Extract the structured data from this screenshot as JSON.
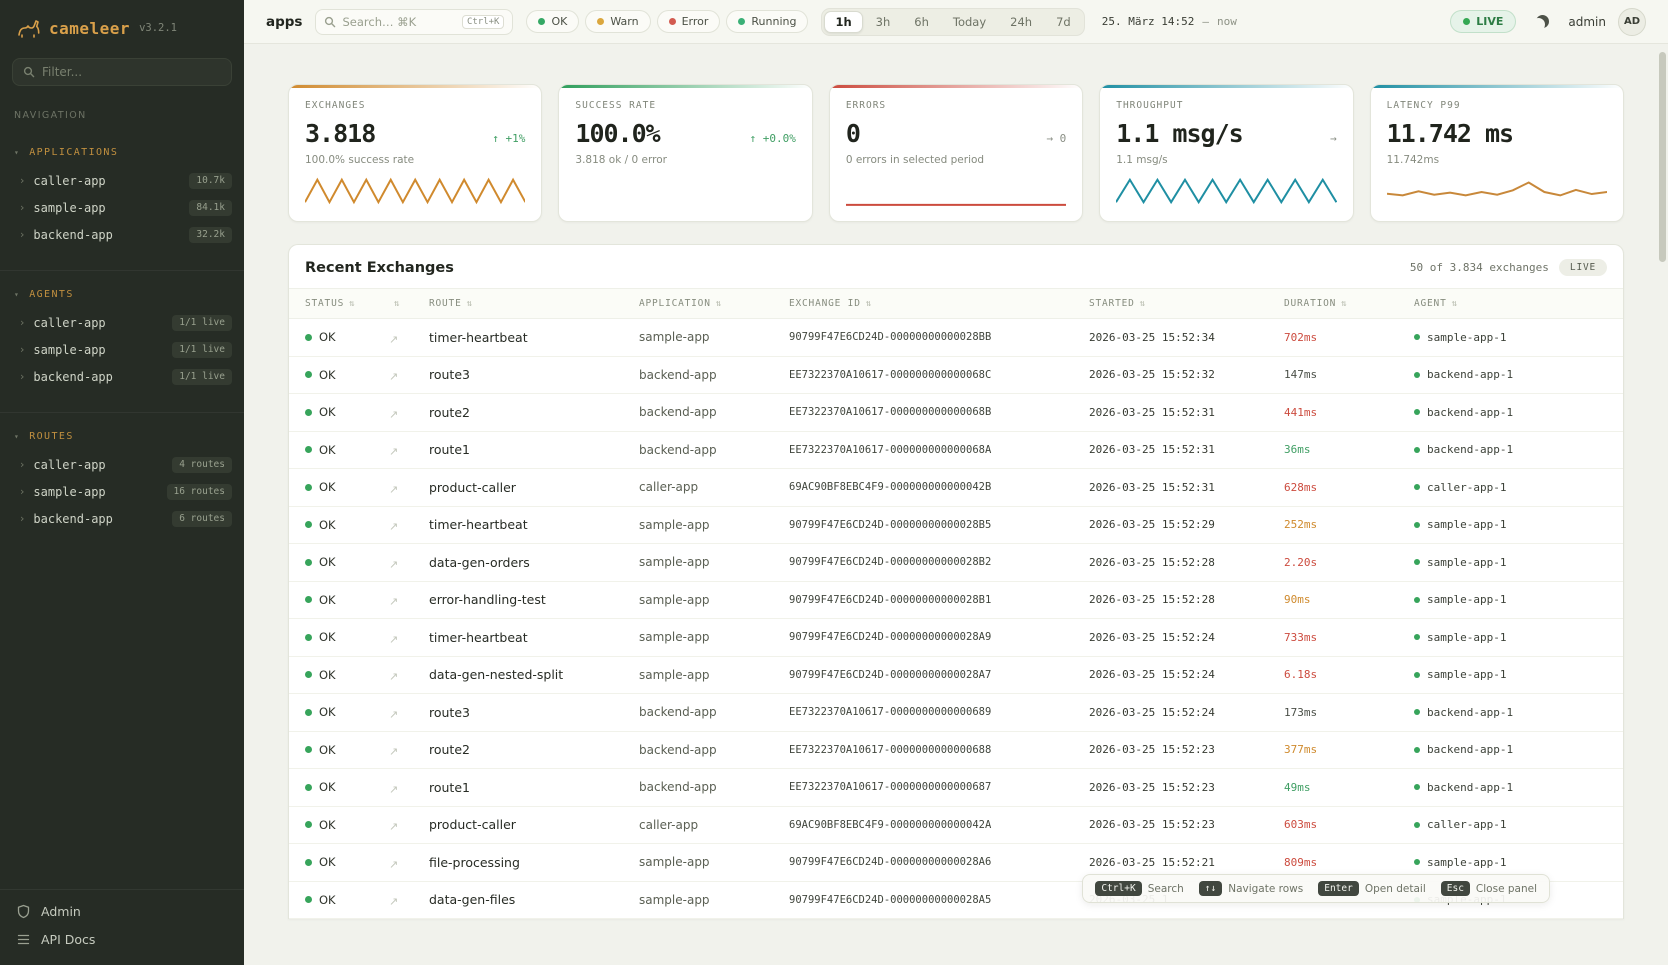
{
  "app": {
    "logo": "cameleer",
    "version": "v3.2.1",
    "accent": "#d9a04a"
  },
  "sidebar": {
    "filter_placeholder": "Filter...",
    "nav_label": "NAVIGATION",
    "sections": [
      {
        "title": "APPLICATIONS",
        "items": [
          {
            "label": "caller-app",
            "badge": "10.7k"
          },
          {
            "label": "sample-app",
            "badge": "84.1k"
          },
          {
            "label": "backend-app",
            "badge": "32.2k"
          }
        ]
      },
      {
        "title": "AGENTS",
        "items": [
          {
            "label": "caller-app",
            "badge": "1/1 live"
          },
          {
            "label": "sample-app",
            "badge": "1/1 live"
          },
          {
            "label": "backend-app",
            "badge": "1/1 live"
          }
        ]
      },
      {
        "title": "ROUTES",
        "items": [
          {
            "label": "caller-app",
            "badge": "4 routes"
          },
          {
            "label": "sample-app",
            "badge": "16 routes"
          },
          {
            "label": "backend-app",
            "badge": "6 routes"
          }
        ]
      }
    ],
    "footer": [
      {
        "label": "Admin"
      },
      {
        "label": "API Docs"
      }
    ]
  },
  "topbar": {
    "page": "apps",
    "search_placeholder": "Search… ⌘K",
    "search_kbd": "Ctrl+K",
    "filters": [
      {
        "label": "OK",
        "color": "#35a865"
      },
      {
        "label": "Warn",
        "color": "#dba73e"
      },
      {
        "label": "Error",
        "color": "#d25b50"
      },
      {
        "label": "Running",
        "color": "#3bb077"
      }
    ],
    "ranges": [
      "1h",
      "3h",
      "6h",
      "Today",
      "24h",
      "7d"
    ],
    "active_range": "1h",
    "date_start": "25. März 14:52",
    "date_sep": "—",
    "date_end": "now",
    "live_label": "LIVE",
    "live_color": "#34a853",
    "user": "admin",
    "avatar": "AD"
  },
  "stats": [
    {
      "title": "EXCHANGES",
      "value": "3.818",
      "delta": "↑ +1%",
      "delta_color": "#3f9e63",
      "sub": "100.0% success rate",
      "color": "#d08a2e",
      "spark_color": "#d08a2e",
      "spark_points": [
        80,
        14,
        80,
        14,
        80,
        14,
        80,
        14,
        80,
        14,
        80,
        14,
        80,
        14,
        80,
        14,
        80,
        14,
        80
      ]
    },
    {
      "title": "SUCCESS RATE",
      "value": "100.0%",
      "delta": "↑ +0.0%",
      "delta_color": "#3f9e63",
      "sub": "3.818 ok / 0 error",
      "color": "#2e9e5b",
      "spark_color": "#2e9e5b",
      "spark_points": []
    },
    {
      "title": "ERRORS",
      "value": "0",
      "delta": "→ 0",
      "delta_color": "#8a8f85",
      "sub": "0 errors in selected period",
      "color": "#cc4b3e",
      "spark_color": "#cc4b3e",
      "spark_points": [
        88,
        88
      ]
    },
    {
      "title": "THROUGHPUT",
      "value": "1.1 msg/s",
      "delta": "→",
      "delta_color": "#8a8f85",
      "sub": "1.1 msg/s",
      "color": "#1f8fa3",
      "spark_color": "#1f8fa3",
      "spark_points": [
        80,
        14,
        80,
        14,
        80,
        14,
        80,
        14,
        80,
        14,
        80,
        14,
        80,
        14,
        80,
        14,
        80
      ]
    },
    {
      "title": "LATENCY P99",
      "value": "11.742 ms",
      "delta": "",
      "delta_color": "#8a8f85",
      "sub": "11.742ms",
      "color": "#1f8fa3",
      "spark_color": "#c8883a",
      "spark_points": [
        55,
        60,
        48,
        58,
        52,
        60,
        50,
        58,
        45,
        22,
        50,
        60,
        44,
        56,
        50
      ]
    }
  ],
  "table": {
    "title": "Recent Exchanges",
    "summary": "50 of 3.834 exchanges",
    "live_label": "LIVE",
    "columns": [
      "STATUS",
      "",
      "ROUTE",
      "APPLICATION",
      "EXCHANGE ID",
      "STARTED",
      "DURATION",
      "AGENT"
    ],
    "rows": [
      {
        "status": "OK",
        "route": "timer-heartbeat",
        "app": "sample-app",
        "exchange_id": "90799F47E6CD24D-00000000000028BB",
        "started": "2026-03-25 15:52:34",
        "duration": "702ms",
        "duration_level": "slow",
        "agent": "sample-app-1"
      },
      {
        "status": "OK",
        "route": "route3",
        "app": "backend-app",
        "exchange_id": "EE7322370A10617-000000000000068C",
        "started": "2026-03-25 15:52:32",
        "duration": "147ms",
        "duration_level": "normal",
        "agent": "backend-app-1"
      },
      {
        "status": "OK",
        "route": "route2",
        "app": "backend-app",
        "exchange_id": "EE7322370A10617-000000000000068B",
        "started": "2026-03-25 15:52:31",
        "duration": "441ms",
        "duration_level": "slow",
        "agent": "backend-app-1"
      },
      {
        "status": "OK",
        "route": "route1",
        "app": "backend-app",
        "exchange_id": "EE7322370A10617-000000000000068A",
        "started": "2026-03-25 15:52:31",
        "duration": "36ms",
        "duration_level": "fast",
        "agent": "backend-app-1"
      },
      {
        "status": "OK",
        "route": "product-caller",
        "app": "caller-app",
        "exchange_id": "69AC90BF8EBC4F9-000000000000042B",
        "started": "2026-03-25 15:52:31",
        "duration": "628ms",
        "duration_level": "slow",
        "agent": "caller-app-1"
      },
      {
        "status": "OK",
        "route": "timer-heartbeat",
        "app": "sample-app",
        "exchange_id": "90799F47E6CD24D-00000000000028B5",
        "started": "2026-03-25 15:52:29",
        "duration": "252ms",
        "duration_level": "warn",
        "agent": "sample-app-1"
      },
      {
        "status": "OK",
        "route": "data-gen-orders",
        "app": "sample-app",
        "exchange_id": "90799F47E6CD24D-00000000000028B2",
        "started": "2026-03-25 15:52:28",
        "duration": "2.20s",
        "duration_level": "slow",
        "agent": "sample-app-1"
      },
      {
        "status": "OK",
        "route": "error-handling-test",
        "app": "sample-app",
        "exchange_id": "90799F47E6CD24D-00000000000028B1",
        "started": "2026-03-25 15:52:28",
        "duration": "90ms",
        "duration_level": "warn",
        "agent": "sample-app-1"
      },
      {
        "status": "OK",
        "route": "timer-heartbeat",
        "app": "sample-app",
        "exchange_id": "90799F47E6CD24D-00000000000028A9",
        "started": "2026-03-25 15:52:24",
        "duration": "733ms",
        "duration_level": "slow",
        "agent": "sample-app-1"
      },
      {
        "status": "OK",
        "route": "data-gen-nested-split",
        "app": "sample-app",
        "exchange_id": "90799F47E6CD24D-00000000000028A7",
        "started": "2026-03-25 15:52:24",
        "duration": "6.18s",
        "duration_level": "slow",
        "agent": "sample-app-1"
      },
      {
        "status": "OK",
        "route": "route3",
        "app": "backend-app",
        "exchange_id": "EE7322370A10617-0000000000000689",
        "started": "2026-03-25 15:52:24",
        "duration": "173ms",
        "duration_level": "normal",
        "agent": "backend-app-1"
      },
      {
        "status": "OK",
        "route": "route2",
        "app": "backend-app",
        "exchange_id": "EE7322370A10617-0000000000000688",
        "started": "2026-03-25 15:52:23",
        "duration": "377ms",
        "duration_level": "warn",
        "agent": "backend-app-1"
      },
      {
        "status": "OK",
        "route": "route1",
        "app": "backend-app",
        "exchange_id": "EE7322370A10617-0000000000000687",
        "started": "2026-03-25 15:52:23",
        "duration": "49ms",
        "duration_level": "fast",
        "agent": "backend-app-1"
      },
      {
        "status": "OK",
        "route": "product-caller",
        "app": "caller-app",
        "exchange_id": "69AC90BF8EBC4F9-000000000000042A",
        "started": "2026-03-25 15:52:23",
        "duration": "603ms",
        "duration_level": "slow",
        "agent": "caller-app-1"
      },
      {
        "status": "OK",
        "route": "file-processing",
        "app": "sample-app",
        "exchange_id": "90799F47E6CD24D-00000000000028A6",
        "started": "2026-03-25 15:52:21",
        "duration": "809ms",
        "duration_level": "slow",
        "agent": "sample-app-1"
      },
      {
        "status": "OK",
        "route": "data-gen-files",
        "app": "sample-app",
        "exchange_id": "90799F47E6CD24D-00000000000028A5",
        "started": "2026-03-25 1",
        "duration": "",
        "duration_level": "normal",
        "agent": "sample-app-1"
      }
    ]
  },
  "hints": [
    {
      "key": "Ctrl+K",
      "label": "Search"
    },
    {
      "key": "↑↓",
      "label": "Navigate rows"
    },
    {
      "key": "Enter",
      "label": "Open detail"
    },
    {
      "key": "Esc",
      "label": "Close panel"
    }
  ]
}
